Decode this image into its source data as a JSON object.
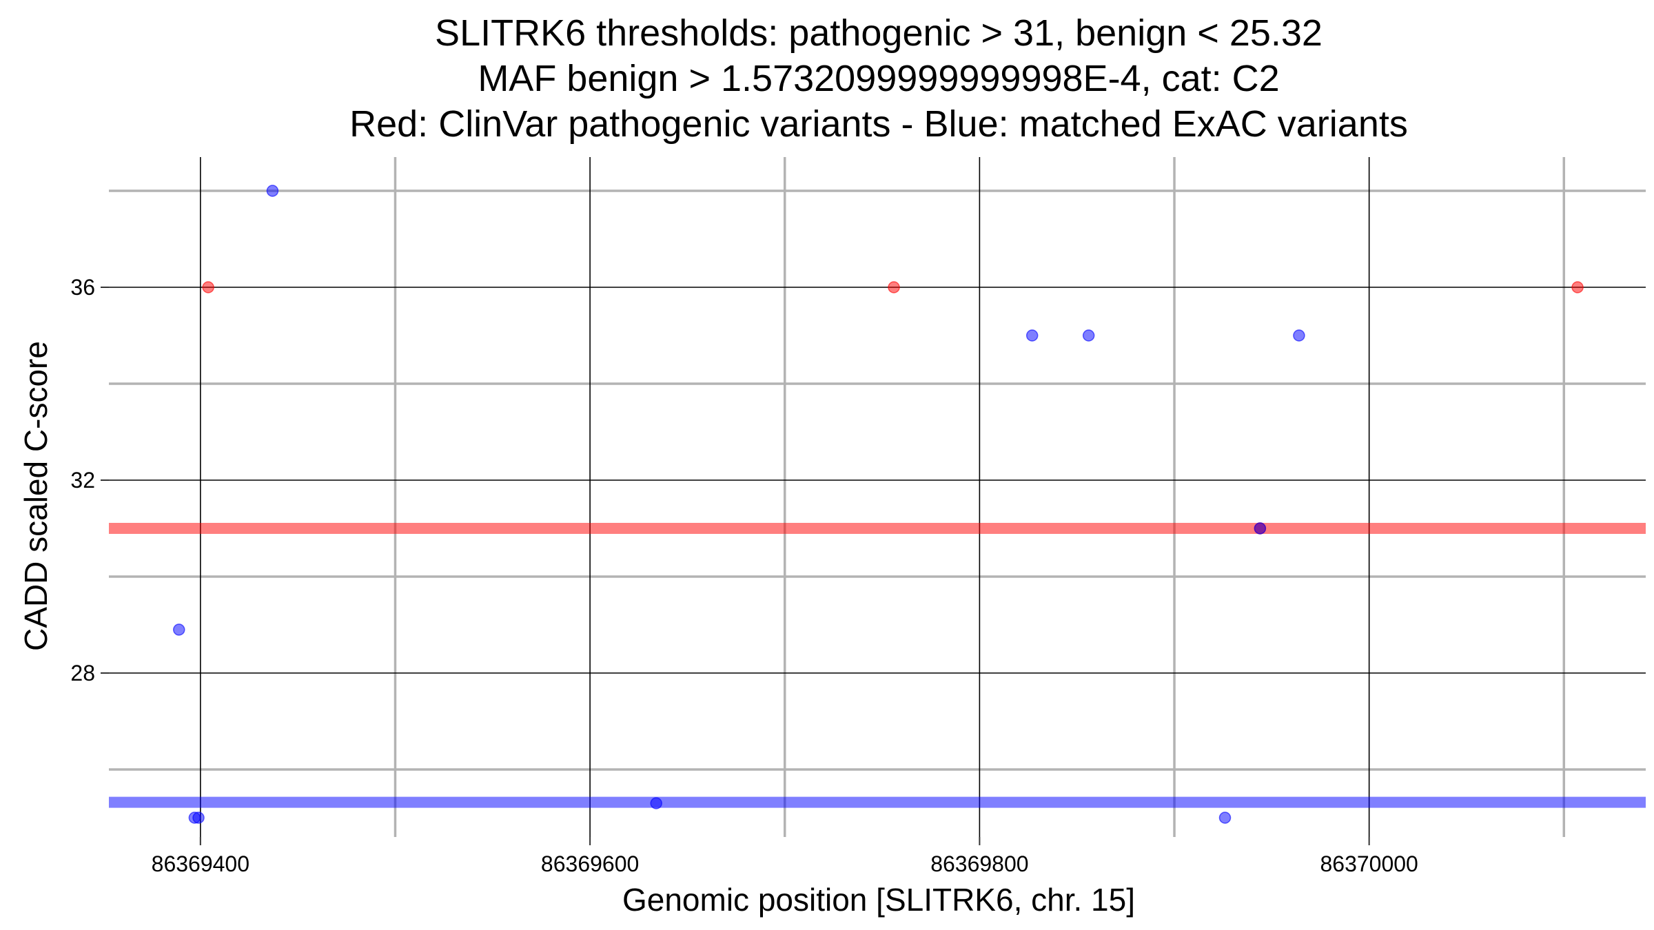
{
  "chart_data": {
    "type": "scatter",
    "title": [
      "SLITRK6 thresholds: pathogenic > 31, benign < 25.32",
      "MAF benign > 1.5732099999999998E-4, cat: C2",
      "Red: ClinVar pathogenic variants - Blue: matched ExAC variants"
    ],
    "xlabel": "Genomic position [SLITRK6, chr. 15]",
    "ylabel": "CADD scaled C-score",
    "xlim": [
      86369353,
      86370142
    ],
    "ylim": [
      24.6,
      38.7
    ],
    "x_ticks": [
      86369400,
      86369600,
      86369800,
      86370000
    ],
    "x_tick_labels": [
      "86369400",
      "86369600",
      "86369800",
      "86370000"
    ],
    "x_minor_ticks": [
      86369500,
      86369700,
      86369900,
      86370100
    ],
    "y_ticks": [
      28,
      32,
      36
    ],
    "y_tick_labels": [
      "28",
      "32",
      "36"
    ],
    "y_minor_ticks": [
      26,
      30,
      34,
      38
    ],
    "grid": true,
    "thresholds": [
      {
        "name": "pathogenic",
        "value": 31,
        "color": "#ff0000"
      },
      {
        "name": "benign",
        "value": 25.32,
        "color": "#0000ff"
      }
    ],
    "series": [
      {
        "color": "#ff0000",
        "points": [
          {
            "x": 86369404,
            "y": 36
          },
          {
            "x": 86369756,
            "y": 36
          },
          {
            "x": 86370107,
            "y": 36
          },
          {
            "x": 86369944,
            "y": 31
          }
        ]
      },
      {
        "color": "#0000ff",
        "points": [
          {
            "x": 86369437,
            "y": 38
          },
          {
            "x": 86369827,
            "y": 35
          },
          {
            "x": 86369856,
            "y": 35
          },
          {
            "x": 86369964,
            "y": 35
          },
          {
            "x": 86369944,
            "y": 31
          },
          {
            "x": 86369389,
            "y": 28.9
          },
          {
            "x": 86369397,
            "y": 25
          },
          {
            "x": 86369399,
            "y": 25
          },
          {
            "x": 86369634,
            "y": 25.3
          },
          {
            "x": 86369926,
            "y": 25
          }
        ]
      }
    ]
  }
}
